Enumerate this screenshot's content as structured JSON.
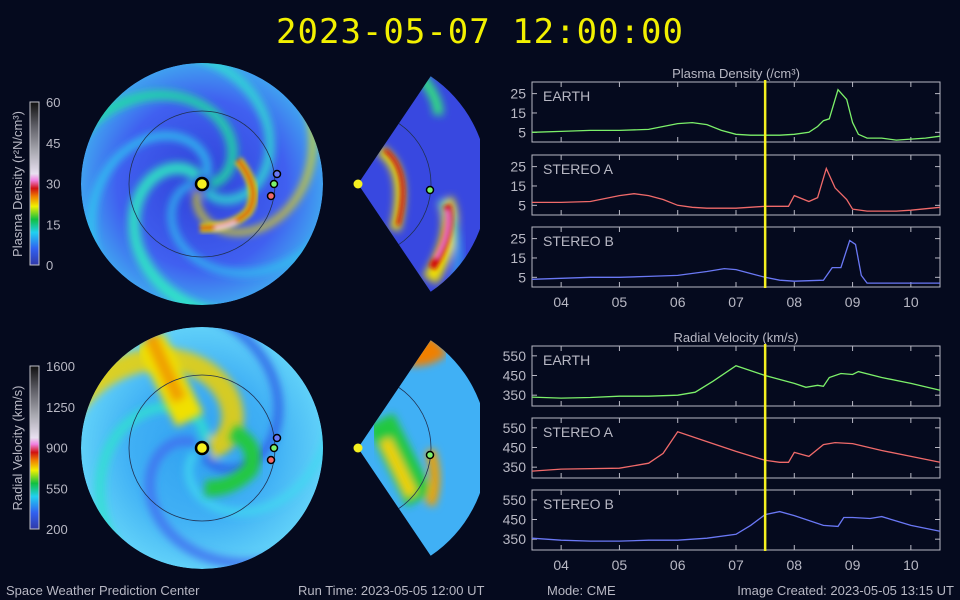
{
  "title": "2023-05-07 12:00:00",
  "footer": {
    "org": "Space Weather Prediction Center",
    "run_time": "Run Time: 2023-05-05 12:00 UT",
    "mode": "Mode: CME",
    "created": "Image Created: 2023-05-05 13:15 UT"
  },
  "colorbars": [
    {
      "label": "Plasma Density (r²N/cm³)",
      "ticks": [
        "0",
        "15",
        "30",
        "45",
        "60"
      ]
    },
    {
      "label": "Radial Velocity (km/s)",
      "ticks": [
        "200",
        "550",
        "900",
        "1250",
        "1600"
      ]
    }
  ],
  "colors": {
    "earth": "#7cf06a",
    "stereo_a": "#f06a6a",
    "stereo_b": "#6a78f5",
    "now_line": "#f5f020",
    "sun": "#f5f020"
  },
  "chart_data": [
    {
      "type": "line",
      "title": "Plasma Density (/cm³)",
      "x_tick_labels": [
        "04",
        "05",
        "06",
        "07",
        "08",
        "09",
        "10"
      ],
      "x_ticks": [
        4,
        5,
        6,
        7,
        8,
        9,
        10
      ],
      "xlim": [
        3.5,
        10.5
      ],
      "ylim": [
        0,
        31
      ],
      "y_ticks": [
        5,
        15,
        25
      ],
      "y_tick_labels": [
        "5",
        "15",
        "25"
      ],
      "current_time": 7.5,
      "panels": [
        {
          "name": "EARTH",
          "x": [
            3.5,
            4,
            4.5,
            5,
            5.5,
            5.75,
            6,
            6.25,
            6.5,
            6.75,
            7,
            7.25,
            7.5,
            7.75,
            8,
            8.25,
            8.4,
            8.5,
            8.6,
            8.75,
            8.9,
            9,
            9.1,
            9.25,
            9.5,
            9.75,
            10,
            10.25,
            10.5
          ],
          "y": [
            5,
            5.5,
            6,
            6,
            6.5,
            8,
            9.5,
            10,
            9,
            6,
            4,
            3.5,
            3.5,
            3.5,
            4,
            5,
            8,
            11,
            12,
            27,
            22,
            10,
            4,
            2,
            2,
            1,
            1.5,
            2,
            3
          ]
        },
        {
          "name": "STEREO A",
          "x": [
            3.5,
            4,
            4.5,
            5,
            5.25,
            5.5,
            5.75,
            6,
            6.25,
            6.5,
            7,
            7.5,
            7.9,
            8,
            8.25,
            8.4,
            8.55,
            8.7,
            8.9,
            9,
            9.25,
            9.75,
            10,
            10.5
          ],
          "y": [
            6.5,
            6.5,
            7,
            10,
            11,
            10,
            8,
            5,
            4,
            3.5,
            3.5,
            4.5,
            4.5,
            10,
            7,
            9,
            24,
            14,
            8,
            3,
            2,
            2,
            2.5,
            4
          ]
        },
        {
          "name": "STEREO B",
          "x": [
            3.5,
            4,
            4.5,
            5,
            5.5,
            6,
            6.5,
            6.8,
            7,
            7.25,
            7.5,
            7.75,
            8,
            8.5,
            8.65,
            8.8,
            8.95,
            9.05,
            9.15,
            9.25,
            9.5,
            10,
            10.5
          ],
          "y": [
            4,
            4.5,
            5,
            5,
            5.5,
            6,
            8,
            9.5,
            9,
            7,
            5,
            3.5,
            3,
            3.5,
            10,
            10,
            24,
            22,
            6,
            2,
            2,
            2,
            2
          ]
        }
      ]
    },
    {
      "type": "line",
      "title": "Radial Velocity (km/s)",
      "x_tick_labels": [
        "04",
        "05",
        "06",
        "07",
        "08",
        "09",
        "10"
      ],
      "x_ticks": [
        4,
        5,
        6,
        7,
        8,
        9,
        10
      ],
      "xlim": [
        3.5,
        10.5
      ],
      "ylim": [
        295,
        600
      ],
      "y_ticks": [
        350,
        450,
        550
      ],
      "y_tick_labels": [
        "350",
        "450",
        "550"
      ],
      "current_time": 7.5,
      "panels": [
        {
          "name": "EARTH",
          "x": [
            3.5,
            4,
            4.5,
            5,
            5.5,
            6,
            6.3,
            6.6,
            7,
            7.5,
            8,
            8.2,
            8.4,
            8.5,
            8.6,
            8.8,
            9,
            9.1,
            9.5,
            10,
            10.5
          ],
          "y": [
            340,
            335,
            338,
            345,
            345,
            350,
            365,
            420,
            500,
            450,
            410,
            390,
            400,
            395,
            440,
            460,
            455,
            470,
            440,
            410,
            375
          ]
        },
        {
          "name": "STEREO A",
          "x": [
            3.5,
            4,
            5,
            5.5,
            5.75,
            6,
            6.5,
            7,
            7.5,
            7.75,
            7.9,
            8,
            8.25,
            8.5,
            8.7,
            9,
            9.5,
            10,
            10.5
          ],
          "y": [
            330,
            340,
            345,
            370,
            420,
            530,
            480,
            430,
            385,
            375,
            375,
            425,
            405,
            465,
            475,
            470,
            435,
            405,
            375
          ]
        },
        {
          "name": "STEREO B",
          "x": [
            3.5,
            4,
            4.5,
            5,
            5.5,
            6,
            6.5,
            7,
            7.25,
            7.5,
            7.75,
            8,
            8.5,
            8.75,
            8.85,
            9,
            9.3,
            9.5,
            10,
            10.5
          ],
          "y": [
            355,
            345,
            340,
            340,
            345,
            345,
            355,
            375,
            420,
            475,
            490,
            470,
            420,
            415,
            460,
            460,
            455,
            465,
            420,
            390
          ]
        }
      ]
    }
  ]
}
